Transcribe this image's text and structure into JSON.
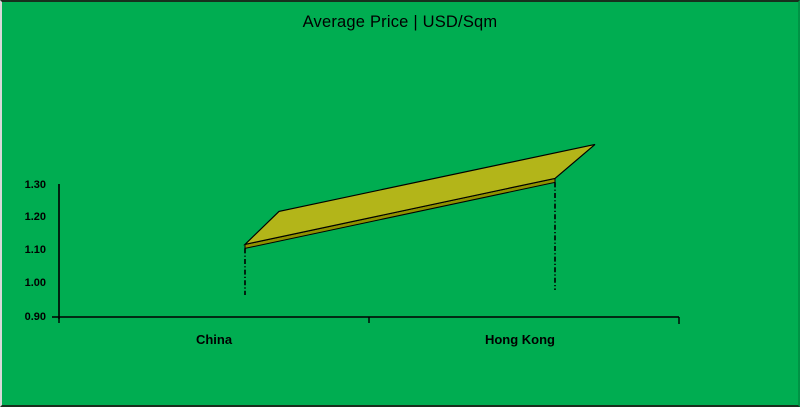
{
  "chart": {
    "colors": {
      "background": "#00AD51",
      "ribbon_top": "#B3B519",
      "ribbon_side": "#8E9100",
      "outline": "#000000",
      "axis": "#000000",
      "text": "#000000"
    }
  },
  "chart_data": {
    "type": "line",
    "subtype": "3d-ribbon",
    "title": "Average Price | USD/Sqm",
    "categories": [
      "China",
      "Hong Kong"
    ],
    "values": [
      1.12,
      1.32
    ],
    "ylim": [
      0.9,
      1.3
    ],
    "ytick_step": 0.1,
    "ytick_labels": [
      "0.90",
      "1.00",
      "1.10",
      "1.20",
      "1.30"
    ],
    "xlabel": "",
    "ylabel": "",
    "grid": false,
    "legend": false,
    "drop_lines": true
  }
}
